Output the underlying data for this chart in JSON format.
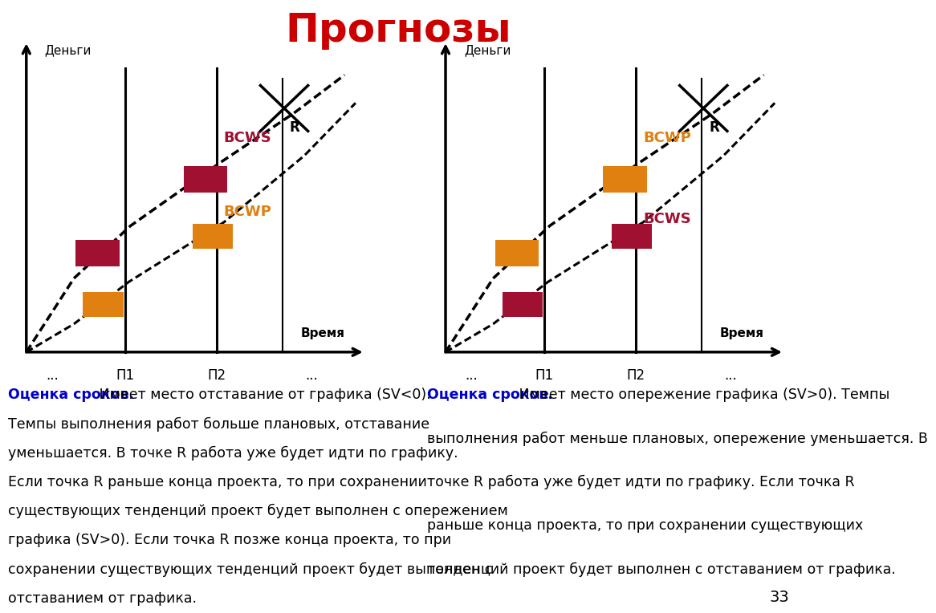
{
  "title": "Прогнозы",
  "title_color": "#CC0000",
  "title_fontsize": 36,
  "bg_color": "#FFFFFF",
  "gray_strip_color": "#C0C0CC",
  "left_panel": {
    "money_label": "Деньги",
    "time_label": "Время",
    "p1_label": "П1",
    "p2_label": "П2",
    "bcws_label": "BCWS",
    "bcwp_label": "BCWP",
    "r_label": "R",
    "bcws_color": "#A01030",
    "bcwp_color": "#E08010"
  },
  "right_panel": {
    "money_label": "Деньги",
    "time_label": "Время",
    "p1_label": "П1",
    "p2_label": "П2",
    "bcws_label": "BCWS",
    "bcwp_label": "BCWP",
    "r_label": "R",
    "bcws_color": "#A01030",
    "bcwp_color": "#E08010"
  },
  "left_text_bold": "Оценка сроков.",
  "left_text_normal": " Имеет место отставание от графика (SV<0). Темпы выполнения работ больше плановых, отставание уменьшается. В точке R работа уже будет идти по графику. Если точка R раньше конца проекта, то при сохранении существующих тенденций проект будет выполнен с опережением графика (SV>0). Если точка R позже конца проекта, то при сохранении существующих тенденций проект будет выполнен с отставанием от графика.",
  "right_text_bold": "Оценка сроков.",
  "right_text_normal": " Имеет место опережение графика (SV>0). Темпы выполнения работ меньше плановых, опережение уменьшается. В точке R работа уже будет идти по графику. Если точка R раньше конца проекта, то при сохранении существующих тенденций проект будет выполнен с отставанием от графика.",
  "text_color_bold": "#0000CC",
  "text_color_normal": "#000000",
  "page_number": "33"
}
